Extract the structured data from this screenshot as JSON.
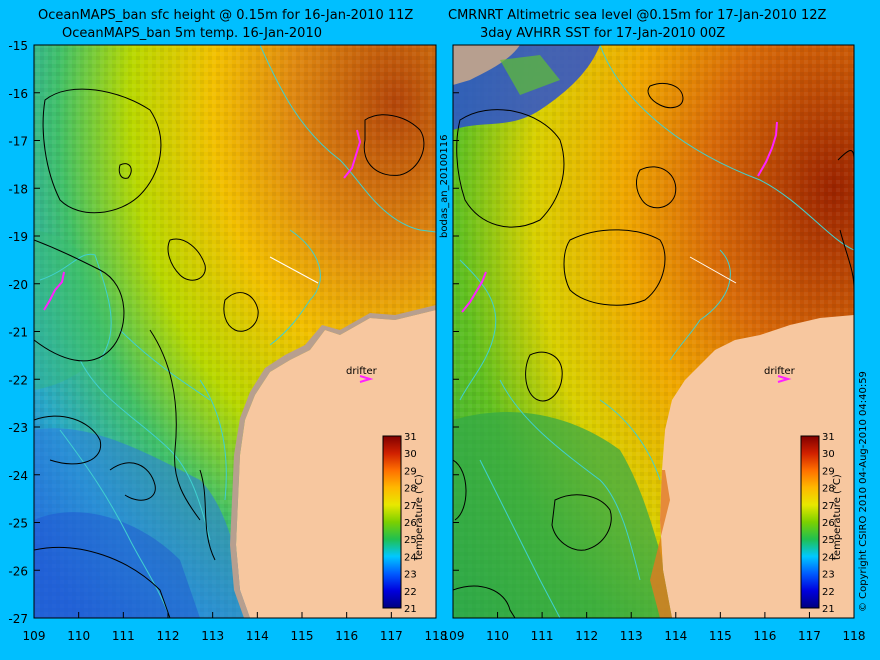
{
  "left_panel": {
    "title_line1": "OceanMAPS_ban sfc height @ 0.15m for 16-Jan-2010 11Z",
    "title_line2": "OceanMAPS_ban 5m temp. 16-Jan-2010"
  },
  "right_panel": {
    "title_line1": "CMRNRT Altimetric sea level  @0.15m  for 17-Jan-2010 12Z",
    "title_line2": "3day AVHRR SST for 17-Jan-2010 00Z"
  },
  "axes": {
    "x_ticks": [
      "109",
      "110",
      "111",
      "112",
      "113",
      "114",
      "115",
      "116",
      "117",
      "118"
    ],
    "y_ticks": [
      "-15",
      "-16",
      "-17",
      "-18",
      "-19",
      "-20",
      "-21",
      "-22",
      "-23",
      "-24",
      "-25",
      "-26",
      "-27"
    ]
  },
  "colorbar": {
    "label": "temperature (°C)",
    "ticks": [
      "31",
      "30",
      "29",
      "28",
      "27",
      "26",
      "25",
      "24",
      "23",
      "22",
      "21"
    ]
  },
  "labels": {
    "drifter": "drifter",
    "side_left": "bodas_an_20100116",
    "side_right": "© Copyright CSIRO 2010   04-Aug-2010 04:40:59"
  },
  "colors": {
    "background": "#00bfff",
    "land": "#f7c79f",
    "coast_mask": "#b79f8f",
    "drifter_marker": "#ff22ff",
    "contour": "#000000",
    "isobath": "#40d0d0"
  }
}
